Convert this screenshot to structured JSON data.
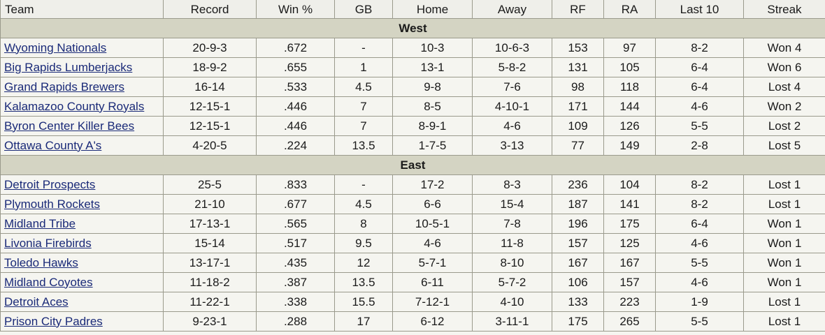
{
  "columns": [
    "Team",
    "Record",
    "Win %",
    "GB",
    "Home",
    "Away",
    "RF",
    "RA",
    "Last 10",
    "Streak"
  ],
  "divisions": [
    {
      "name": "West",
      "teams": [
        {
          "team": "Wyoming Nationals",
          "record": "20-9-3",
          "win_pct": ".672",
          "gb": "-",
          "home": "10-3",
          "away": "10-6-3",
          "rf": "153",
          "ra": "97",
          "last10": "8-2",
          "streak": "Won 4"
        },
        {
          "team": "Big Rapids Lumberjacks",
          "record": "18-9-2",
          "win_pct": ".655",
          "gb": "1",
          "home": "13-1",
          "away": "5-8-2",
          "rf": "131",
          "ra": "105",
          "last10": "6-4",
          "streak": "Won 6"
        },
        {
          "team": "Grand Rapids Brewers",
          "record": "16-14",
          "win_pct": ".533",
          "gb": "4.5",
          "home": "9-8",
          "away": "7-6",
          "rf": "98",
          "ra": "118",
          "last10": "6-4",
          "streak": "Lost 4"
        },
        {
          "team": "Kalamazoo County Royals",
          "record": "12-15-1",
          "win_pct": ".446",
          "gb": "7",
          "home": "8-5",
          "away": "4-10-1",
          "rf": "171",
          "ra": "144",
          "last10": "4-6",
          "streak": "Won 2"
        },
        {
          "team": "Byron Center Killer Bees",
          "record": "12-15-1",
          "win_pct": ".446",
          "gb": "7",
          "home": "8-9-1",
          "away": "4-6",
          "rf": "109",
          "ra": "126",
          "last10": "5-5",
          "streak": "Lost 2"
        },
        {
          "team": "Ottawa County A's",
          "record": "4-20-5",
          "win_pct": ".224",
          "gb": "13.5",
          "home": "1-7-5",
          "away": "3-13",
          "rf": "77",
          "ra": "149",
          "last10": "2-8",
          "streak": "Lost 5"
        }
      ]
    },
    {
      "name": "East",
      "teams": [
        {
          "team": "Detroit Prospects",
          "record": "25-5",
          "win_pct": ".833",
          "gb": "-",
          "home": "17-2",
          "away": "8-3",
          "rf": "236",
          "ra": "104",
          "last10": "8-2",
          "streak": "Lost 1"
        },
        {
          "team": "Plymouth Rockets",
          "record": "21-10",
          "win_pct": ".677",
          "gb": "4.5",
          "home": "6-6",
          "away": "15-4",
          "rf": "187",
          "ra": "141",
          "last10": "8-2",
          "streak": "Lost 1"
        },
        {
          "team": "Midland Tribe",
          "record": "17-13-1",
          "win_pct": ".565",
          "gb": "8",
          "home": "10-5-1",
          "away": "7-8",
          "rf": "196",
          "ra": "175",
          "last10": "6-4",
          "streak": "Won 1"
        },
        {
          "team": "Livonia Firebirds",
          "record": "15-14",
          "win_pct": ".517",
          "gb": "9.5",
          "home": "4-6",
          "away": "11-8",
          "rf": "157",
          "ra": "125",
          "last10": "4-6",
          "streak": "Won 1"
        },
        {
          "team": "Toledo Hawks",
          "record": "13-17-1",
          "win_pct": ".435",
          "gb": "12",
          "home": "5-7-1",
          "away": "8-10",
          "rf": "167",
          "ra": "167",
          "last10": "5-5",
          "streak": "Won 1"
        },
        {
          "team": "Midland Coyotes",
          "record": "11-18-2",
          "win_pct": ".387",
          "gb": "13.5",
          "home": "6-11",
          "away": "5-7-2",
          "rf": "106",
          "ra": "157",
          "last10": "4-6",
          "streak": "Won 1"
        },
        {
          "team": "Detroit Aces",
          "record": "11-22-1",
          "win_pct": ".338",
          "gb": "15.5",
          "home": "7-12-1",
          "away": "4-10",
          "rf": "133",
          "ra": "223",
          "last10": "1-9",
          "streak": "Lost 1"
        },
        {
          "team": "Prison City Padres",
          "record": "9-23-1",
          "win_pct": ".288",
          "gb": "17",
          "home": "6-12",
          "away": "3-11-1",
          "rf": "175",
          "ra": "265",
          "last10": "5-5",
          "streak": "Lost 1"
        }
      ]
    }
  ],
  "colors": {
    "page_bg": "#f5f5f0",
    "division_bg": "#d4d4c3",
    "border": "#9a9a8c",
    "link": "#1a2a78"
  }
}
